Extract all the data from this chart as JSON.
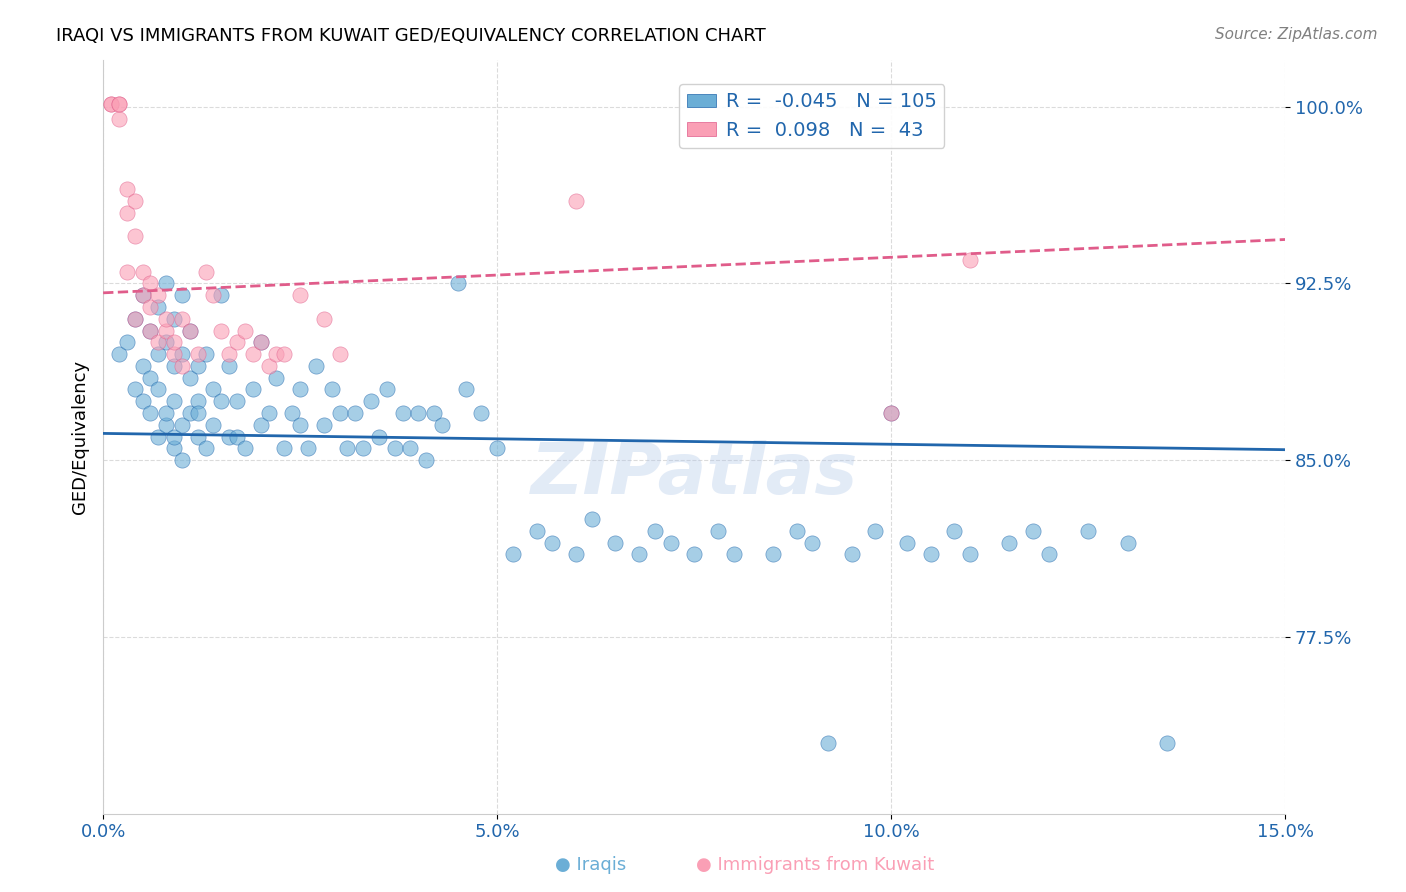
{
  "title": "IRAQI VS IMMIGRANTS FROM KUWAIT GED/EQUIVALENCY CORRELATION CHART",
  "source": "Source: ZipAtlas.com",
  "xlabel": "",
  "ylabel": "GED/Equivalency",
  "xlim": [
    0.0,
    0.15
  ],
  "ylim": [
    0.7,
    1.02
  ],
  "xticks": [
    0.0,
    0.05,
    0.1,
    0.15
  ],
  "xticklabels": [
    "0.0%",
    "5.0%",
    "10.0%",
    "15.0%"
  ],
  "yticks": [
    0.775,
    0.85,
    0.925,
    1.0
  ],
  "yticklabels": [
    "77.5%",
    "85.0%",
    "92.5%",
    "100.0%"
  ],
  "blue_color": "#6baed6",
  "pink_color": "#fa9fb5",
  "blue_line_color": "#2166ac",
  "pink_line_color": "#e05c8a",
  "R_blue": -0.045,
  "N_blue": 105,
  "R_pink": 0.098,
  "N_pink": 43,
  "blue_scatter": {
    "x": [
      0.002,
      0.003,
      0.004,
      0.004,
      0.005,
      0.005,
      0.005,
      0.006,
      0.006,
      0.006,
      0.007,
      0.007,
      0.007,
      0.007,
      0.008,
      0.008,
      0.008,
      0.008,
      0.009,
      0.009,
      0.009,
      0.009,
      0.009,
      0.01,
      0.01,
      0.01,
      0.01,
      0.011,
      0.011,
      0.011,
      0.012,
      0.012,
      0.012,
      0.012,
      0.013,
      0.013,
      0.014,
      0.014,
      0.015,
      0.015,
      0.016,
      0.016,
      0.017,
      0.017,
      0.018,
      0.019,
      0.02,
      0.02,
      0.021,
      0.022,
      0.023,
      0.024,
      0.025,
      0.025,
      0.026,
      0.027,
      0.028,
      0.029,
      0.03,
      0.031,
      0.032,
      0.033,
      0.034,
      0.035,
      0.036,
      0.037,
      0.038,
      0.039,
      0.04,
      0.041,
      0.042,
      0.043,
      0.045,
      0.046,
      0.048,
      0.05,
      0.052,
      0.055,
      0.057,
      0.06,
      0.062,
      0.065,
      0.068,
      0.07,
      0.072,
      0.075,
      0.078,
      0.08,
      0.085,
      0.088,
      0.09,
      0.092,
      0.095,
      0.098,
      0.1,
      0.102,
      0.105,
      0.108,
      0.11,
      0.115,
      0.118,
      0.12,
      0.125,
      0.13,
      0.135
    ],
    "y": [
      0.895,
      0.9,
      0.88,
      0.91,
      0.875,
      0.92,
      0.89,
      0.885,
      0.905,
      0.87,
      0.86,
      0.895,
      0.915,
      0.88,
      0.865,
      0.9,
      0.925,
      0.87,
      0.855,
      0.89,
      0.91,
      0.875,
      0.86,
      0.895,
      0.92,
      0.865,
      0.85,
      0.885,
      0.87,
      0.905,
      0.875,
      0.86,
      0.89,
      0.87,
      0.855,
      0.895,
      0.88,
      0.865,
      0.92,
      0.875,
      0.86,
      0.89,
      0.875,
      0.86,
      0.855,
      0.88,
      0.865,
      0.9,
      0.87,
      0.885,
      0.855,
      0.87,
      0.865,
      0.88,
      0.855,
      0.89,
      0.865,
      0.88,
      0.87,
      0.855,
      0.87,
      0.855,
      0.875,
      0.86,
      0.88,
      0.855,
      0.87,
      0.855,
      0.87,
      0.85,
      0.87,
      0.865,
      0.925,
      0.88,
      0.87,
      0.855,
      0.81,
      0.82,
      0.815,
      0.81,
      0.825,
      0.815,
      0.81,
      0.82,
      0.815,
      0.81,
      0.82,
      0.81,
      0.81,
      0.82,
      0.815,
      0.73,
      0.81,
      0.82,
      0.87,
      0.815,
      0.81,
      0.82,
      0.81,
      0.815,
      0.82,
      0.81,
      0.82,
      0.815,
      0.73
    ]
  },
  "pink_scatter": {
    "x": [
      0.001,
      0.001,
      0.002,
      0.002,
      0.002,
      0.003,
      0.003,
      0.003,
      0.004,
      0.004,
      0.004,
      0.005,
      0.005,
      0.006,
      0.006,
      0.006,
      0.007,
      0.007,
      0.008,
      0.008,
      0.009,
      0.009,
      0.01,
      0.01,
      0.011,
      0.012,
      0.013,
      0.014,
      0.015,
      0.016,
      0.017,
      0.018,
      0.019,
      0.02,
      0.021,
      0.022,
      0.023,
      0.025,
      0.028,
      0.03,
      0.06,
      0.1,
      0.11
    ],
    "y": [
      1.001,
      1.001,
      1.001,
      0.995,
      1.001,
      0.93,
      0.955,
      0.965,
      0.91,
      0.96,
      0.945,
      0.92,
      0.93,
      0.915,
      0.905,
      0.925,
      0.9,
      0.92,
      0.905,
      0.91,
      0.895,
      0.9,
      0.89,
      0.91,
      0.905,
      0.895,
      0.93,
      0.92,
      0.905,
      0.895,
      0.9,
      0.905,
      0.895,
      0.9,
      0.89,
      0.895,
      0.895,
      0.92,
      0.91,
      0.895,
      0.96,
      0.87,
      0.935
    ]
  }
}
